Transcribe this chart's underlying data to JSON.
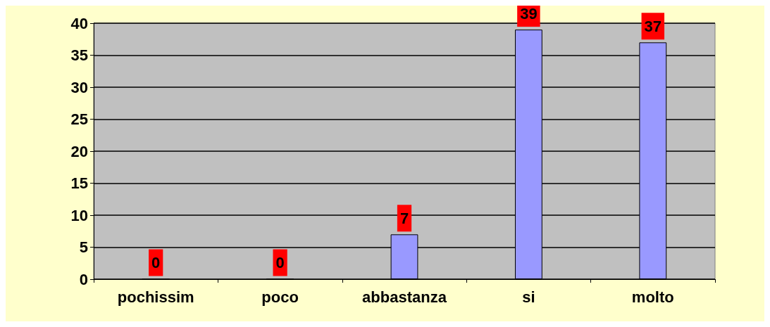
{
  "chart_data": {
    "type": "bar",
    "categories": [
      "pochissim",
      "poco",
      "abbastanza",
      "si",
      "molto"
    ],
    "values": [
      0,
      0,
      7,
      39,
      37
    ],
    "color": "#9999ff",
    "ylim": [
      0,
      40
    ],
    "yticks": [
      0,
      5,
      10,
      15,
      20,
      25,
      30,
      35,
      40
    ],
    "grid": "y",
    "data_labels": true
  }
}
